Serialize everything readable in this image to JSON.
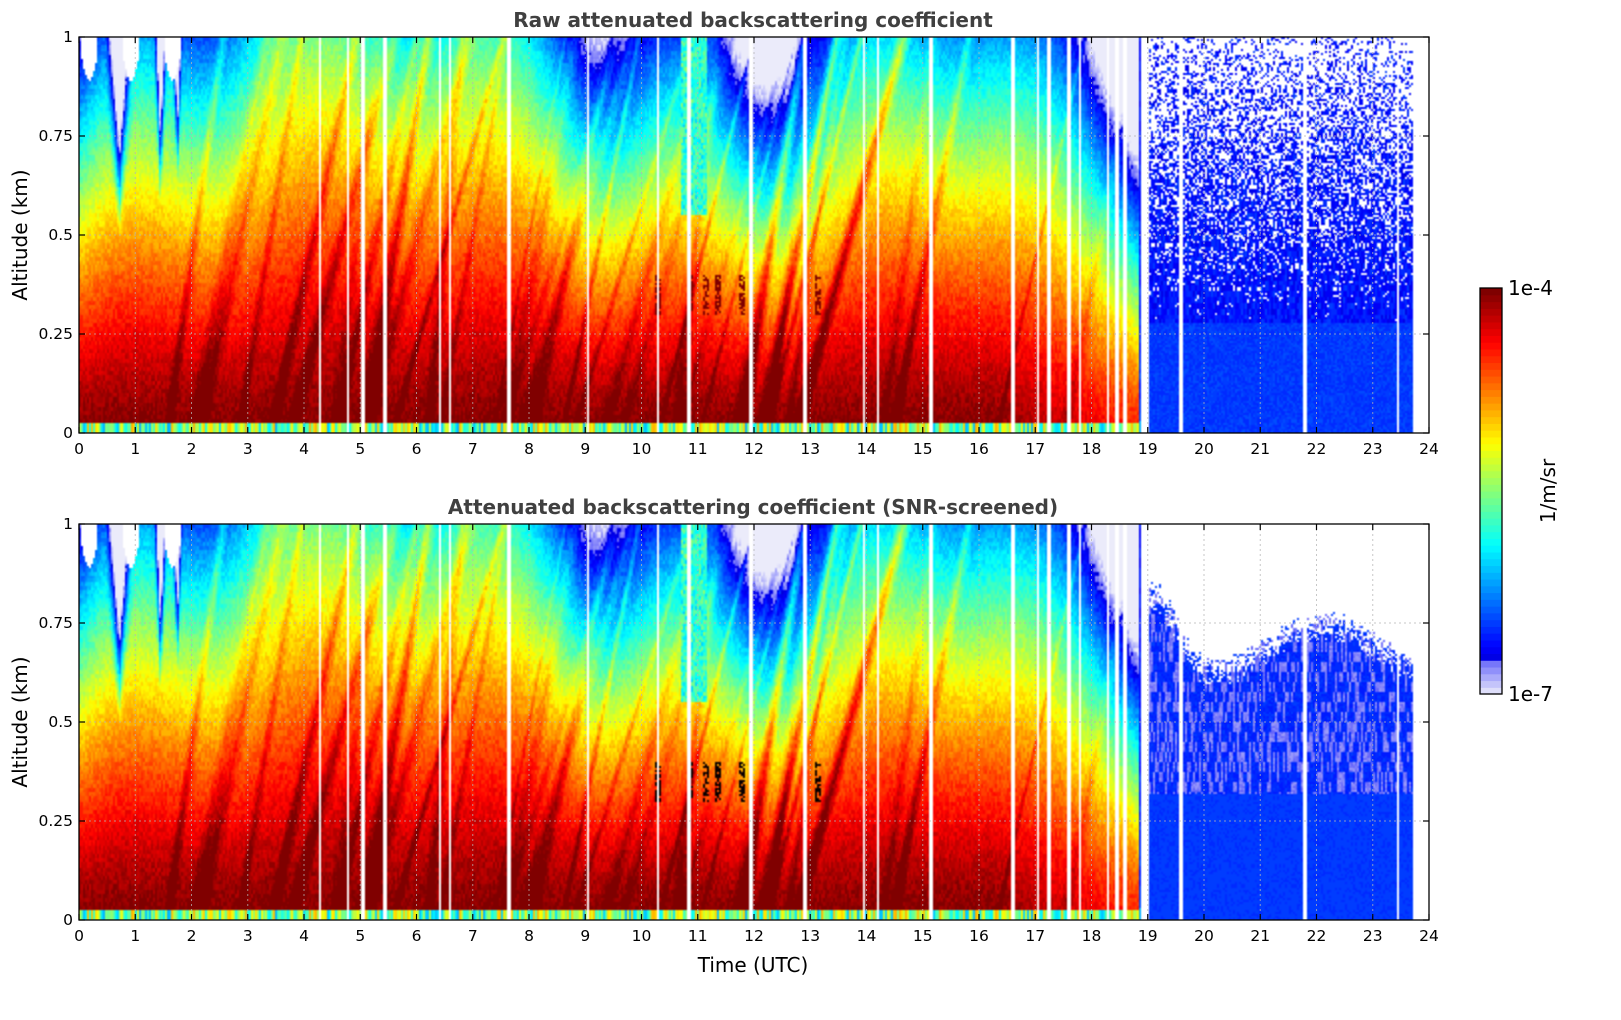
{
  "chart_data": [
    {
      "type": "heatmap",
      "title": "Raw attenuated backscattering coefficient",
      "xlabel": "",
      "ylabel": "Altitude (km)",
      "xlim": [
        0,
        24
      ],
      "ylim": [
        0,
        1
      ],
      "x_ticks": [
        "0",
        "1",
        "2",
        "3",
        "4",
        "5",
        "6",
        "7",
        "8",
        "9",
        "10",
        "11",
        "12",
        "13",
        "14",
        "15",
        "16",
        "17",
        "18",
        "19",
        "20",
        "21",
        "22",
        "23",
        "24"
      ],
      "y_ticks": [
        "0",
        "0.25",
        "0.5",
        "0.75",
        "1"
      ],
      "grid": true,
      "screened": false
    },
    {
      "type": "heatmap",
      "title": "Attenuated backscattering coefficient (SNR-screened)",
      "xlabel": "Time (UTC)",
      "ylabel": "Altitude (km)",
      "xlim": [
        0,
        24
      ],
      "ylim": [
        0,
        1
      ],
      "x_ticks": [
        "0",
        "1",
        "2",
        "3",
        "4",
        "5",
        "6",
        "7",
        "8",
        "9",
        "10",
        "11",
        "12",
        "13",
        "14",
        "15",
        "16",
        "17",
        "18",
        "19",
        "20",
        "21",
        "22",
        "23",
        "24"
      ],
      "y_ticks": [
        "0",
        "0.25",
        "0.5",
        "0.75",
        "1"
      ],
      "grid": true,
      "screened": true
    }
  ],
  "colorbar": {
    "label": "1/m/sr",
    "max_label": "1e-4",
    "min_label": "1e-7",
    "scale": "log",
    "colormap": "jet",
    "placement": "right"
  },
  "field_model": {
    "data_gaps_hours": [
      4.28,
      4.78,
      5.05,
      5.43,
      6.42,
      6.6,
      7.65,
      9.05,
      10.3,
      10.85,
      11.95,
      12.9,
      13.95,
      14.2,
      15.15,
      16.6,
      17.05,
      17.25,
      17.6,
      17.8,
      18.3,
      18.45,
      18.6,
      18.95,
      19.6,
      21.8,
      23.45
    ],
    "night_onset_hours": 18.85,
    "low_cloud_hours": [
      10.3,
      10.85,
      11.15,
      11.35,
      11.8,
      13.15
    ],
    "low_cloud_altitude_km": [
      0.3,
      0.4
    ]
  }
}
